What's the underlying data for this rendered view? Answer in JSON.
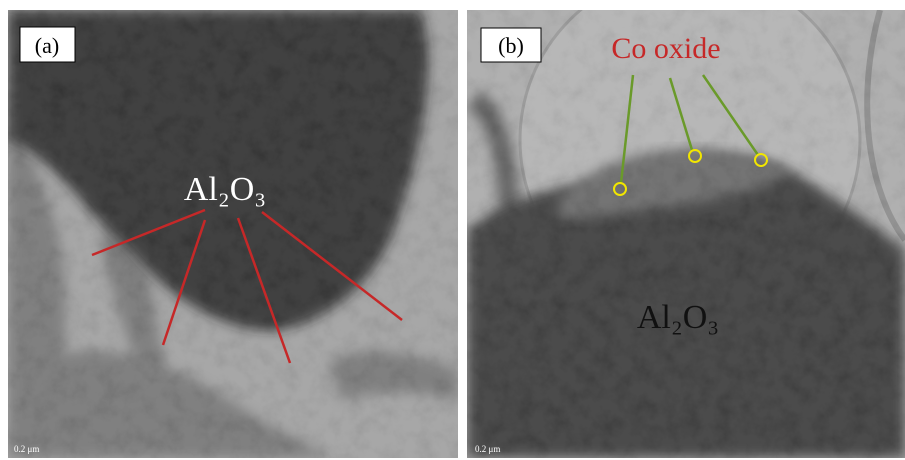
{
  "panels": [
    {
      "label": "(a)",
      "annotation": "Al₂O₃",
      "scale_bar": "0.2 μm"
    },
    {
      "label": "(b)",
      "annotation": "Al₂O₃",
      "callout": "Co oxide",
      "scale_bar": "0.2 μm"
    }
  ]
}
